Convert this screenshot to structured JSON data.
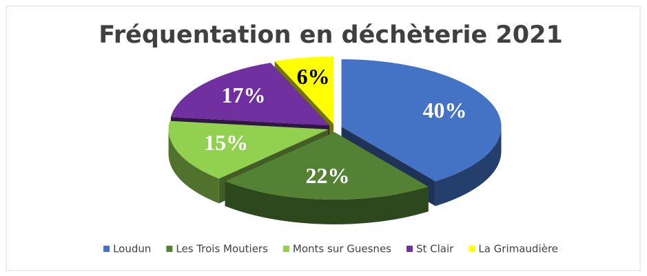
{
  "chart_data": {
    "type": "pie3d",
    "title": "Fréquentation en déchèterie 2021",
    "categories": [
      "Loudun",
      "Les Trois Moutiers",
      "Monts sur Guesnes",
      "St Clair",
      "La Grimaudière"
    ],
    "values": [
      40,
      22,
      15,
      17,
      6
    ],
    "value_labels": [
      "40%",
      "22%",
      "15%",
      "17%",
      "6%"
    ],
    "colors": [
      "#4472c4",
      "#548235",
      "#92d050",
      "#7030a0",
      "#ffff00"
    ],
    "legend": "bottom"
  }
}
